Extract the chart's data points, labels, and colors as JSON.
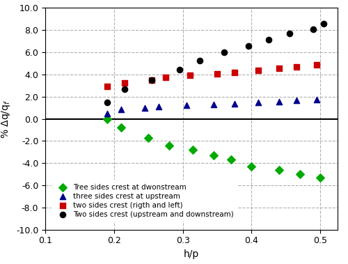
{
  "green_x": [
    0.19,
    0.21,
    0.25,
    0.28,
    0.315,
    0.345,
    0.37,
    0.4,
    0.44,
    0.47,
    0.5
  ],
  "green_y": [
    0.0,
    -0.8,
    -1.7,
    -2.4,
    -2.8,
    -3.3,
    -3.7,
    -4.3,
    -4.6,
    -5.0,
    -5.3
  ],
  "blue_x": [
    0.19,
    0.21,
    0.245,
    0.265,
    0.305,
    0.345,
    0.375,
    0.41,
    0.44,
    0.465,
    0.495
  ],
  "blue_y": [
    0.5,
    0.85,
    1.0,
    1.1,
    1.2,
    1.3,
    1.35,
    1.45,
    1.55,
    1.65,
    1.75
  ],
  "red_x": [
    0.19,
    0.215,
    0.255,
    0.275,
    0.31,
    0.35,
    0.375,
    0.41,
    0.44,
    0.465,
    0.495
  ],
  "red_y": [
    2.9,
    3.25,
    3.5,
    3.75,
    3.95,
    4.05,
    4.2,
    4.4,
    4.55,
    4.7,
    4.85
  ],
  "black_x": [
    0.19,
    0.215,
    0.255,
    0.295,
    0.325,
    0.36,
    0.395,
    0.425,
    0.455,
    0.49,
    0.505
  ],
  "black_y": [
    1.5,
    2.65,
    3.5,
    4.45,
    5.25,
    6.0,
    6.55,
    7.15,
    7.7,
    8.1,
    8.6
  ],
  "green_color": "#00aa00",
  "blue_color": "#00008B",
  "red_color": "#cc0000",
  "black_color": "#000000",
  "xlabel": "h/p",
  "ylabel": "% Δq/q_f",
  "ylim": [
    -10.0,
    10.0
  ],
  "xlim": [
    0.1,
    0.525
  ],
  "yticks": [
    -10,
    -8,
    -6,
    -4,
    -2,
    0,
    2,
    4,
    6,
    8,
    10
  ],
  "xticks": [
    0.1,
    0.2,
    0.3,
    0.4,
    0.5
  ],
  "xtick_labels": [
    "0.1",
    "0.2",
    "0.3",
    "0.4",
    "0.5"
  ],
  "legend": [
    "Tree sides crest at dwonstream",
    "three sides crest at upstream",
    "two sides crest (rigth and left)",
    "Two sides crest (upstream and downstream)"
  ],
  "bg_color": "#ffffff",
  "figsize": [
    5.0,
    3.79
  ],
  "dpi": 100
}
